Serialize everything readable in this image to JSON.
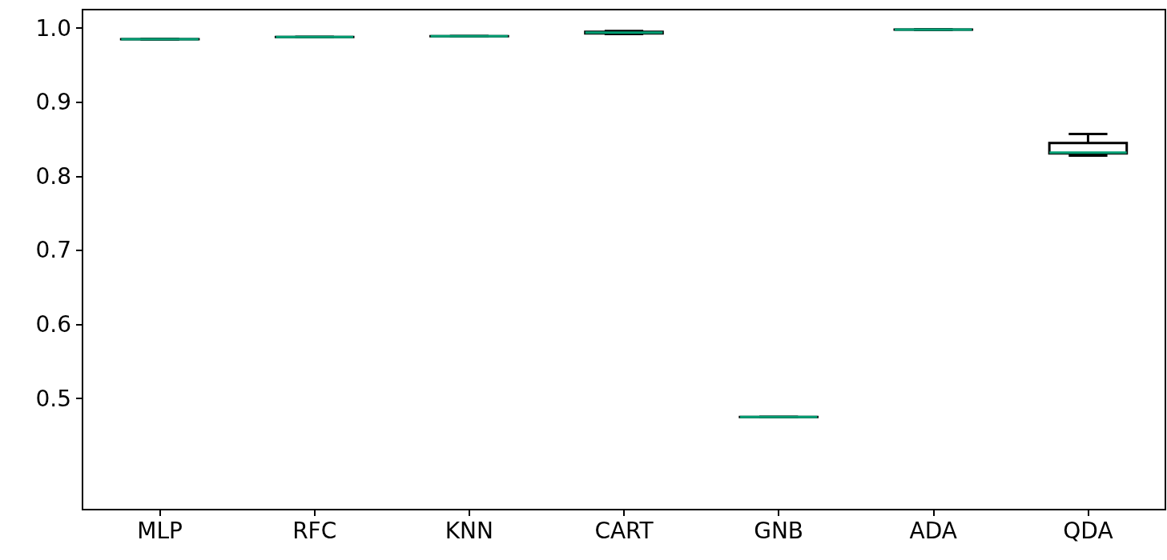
{
  "chart_data": {
    "type": "box",
    "categories": [
      "MLP",
      "RFC",
      "KNN",
      "CART",
      "GNB",
      "ADA",
      "QDA"
    ],
    "series": [
      {
        "color": "#000000",
        "boxes": [
          {
            "low": 0.985,
            "q1": 0.985,
            "median": 0.985,
            "q3": 0.985,
            "high": 0.985
          },
          {
            "low": 0.988,
            "q1": 0.988,
            "median": 0.988,
            "q3": 0.988,
            "high": 0.988
          },
          {
            "low": 0.989,
            "q1": 0.989,
            "median": 0.989,
            "q3": 0.989,
            "high": 0.989
          },
          {
            "low": 0.992,
            "q1": 0.993,
            "median": 0.994,
            "q3": 0.995,
            "high": 0.996
          },
          {
            "low": 0.475,
            "q1": 0.475,
            "median": 0.475,
            "q3": 0.475,
            "high": 0.475
          },
          {
            "low": 0.998,
            "q1": 0.998,
            "median": 0.998,
            "q3": 0.998,
            "high": 0.998
          },
          {
            "low": 0.828,
            "q1": 0.831,
            "median": 0.832,
            "q3": 0.845,
            "high": 0.857
          }
        ]
      }
    ],
    "ylim": [
      0.35,
      1.025
    ],
    "yticks": [
      {
        "value": 0.5,
        "label": "0.5"
      },
      {
        "value": 0.6,
        "label": "0.6"
      },
      {
        "value": 0.7,
        "label": "0.7"
      },
      {
        "value": 0.8,
        "label": "0.8"
      },
      {
        "value": 0.9,
        "label": "0.9"
      },
      {
        "value": 1.0,
        "label": "1.0"
      }
    ],
    "grid": false
  }
}
